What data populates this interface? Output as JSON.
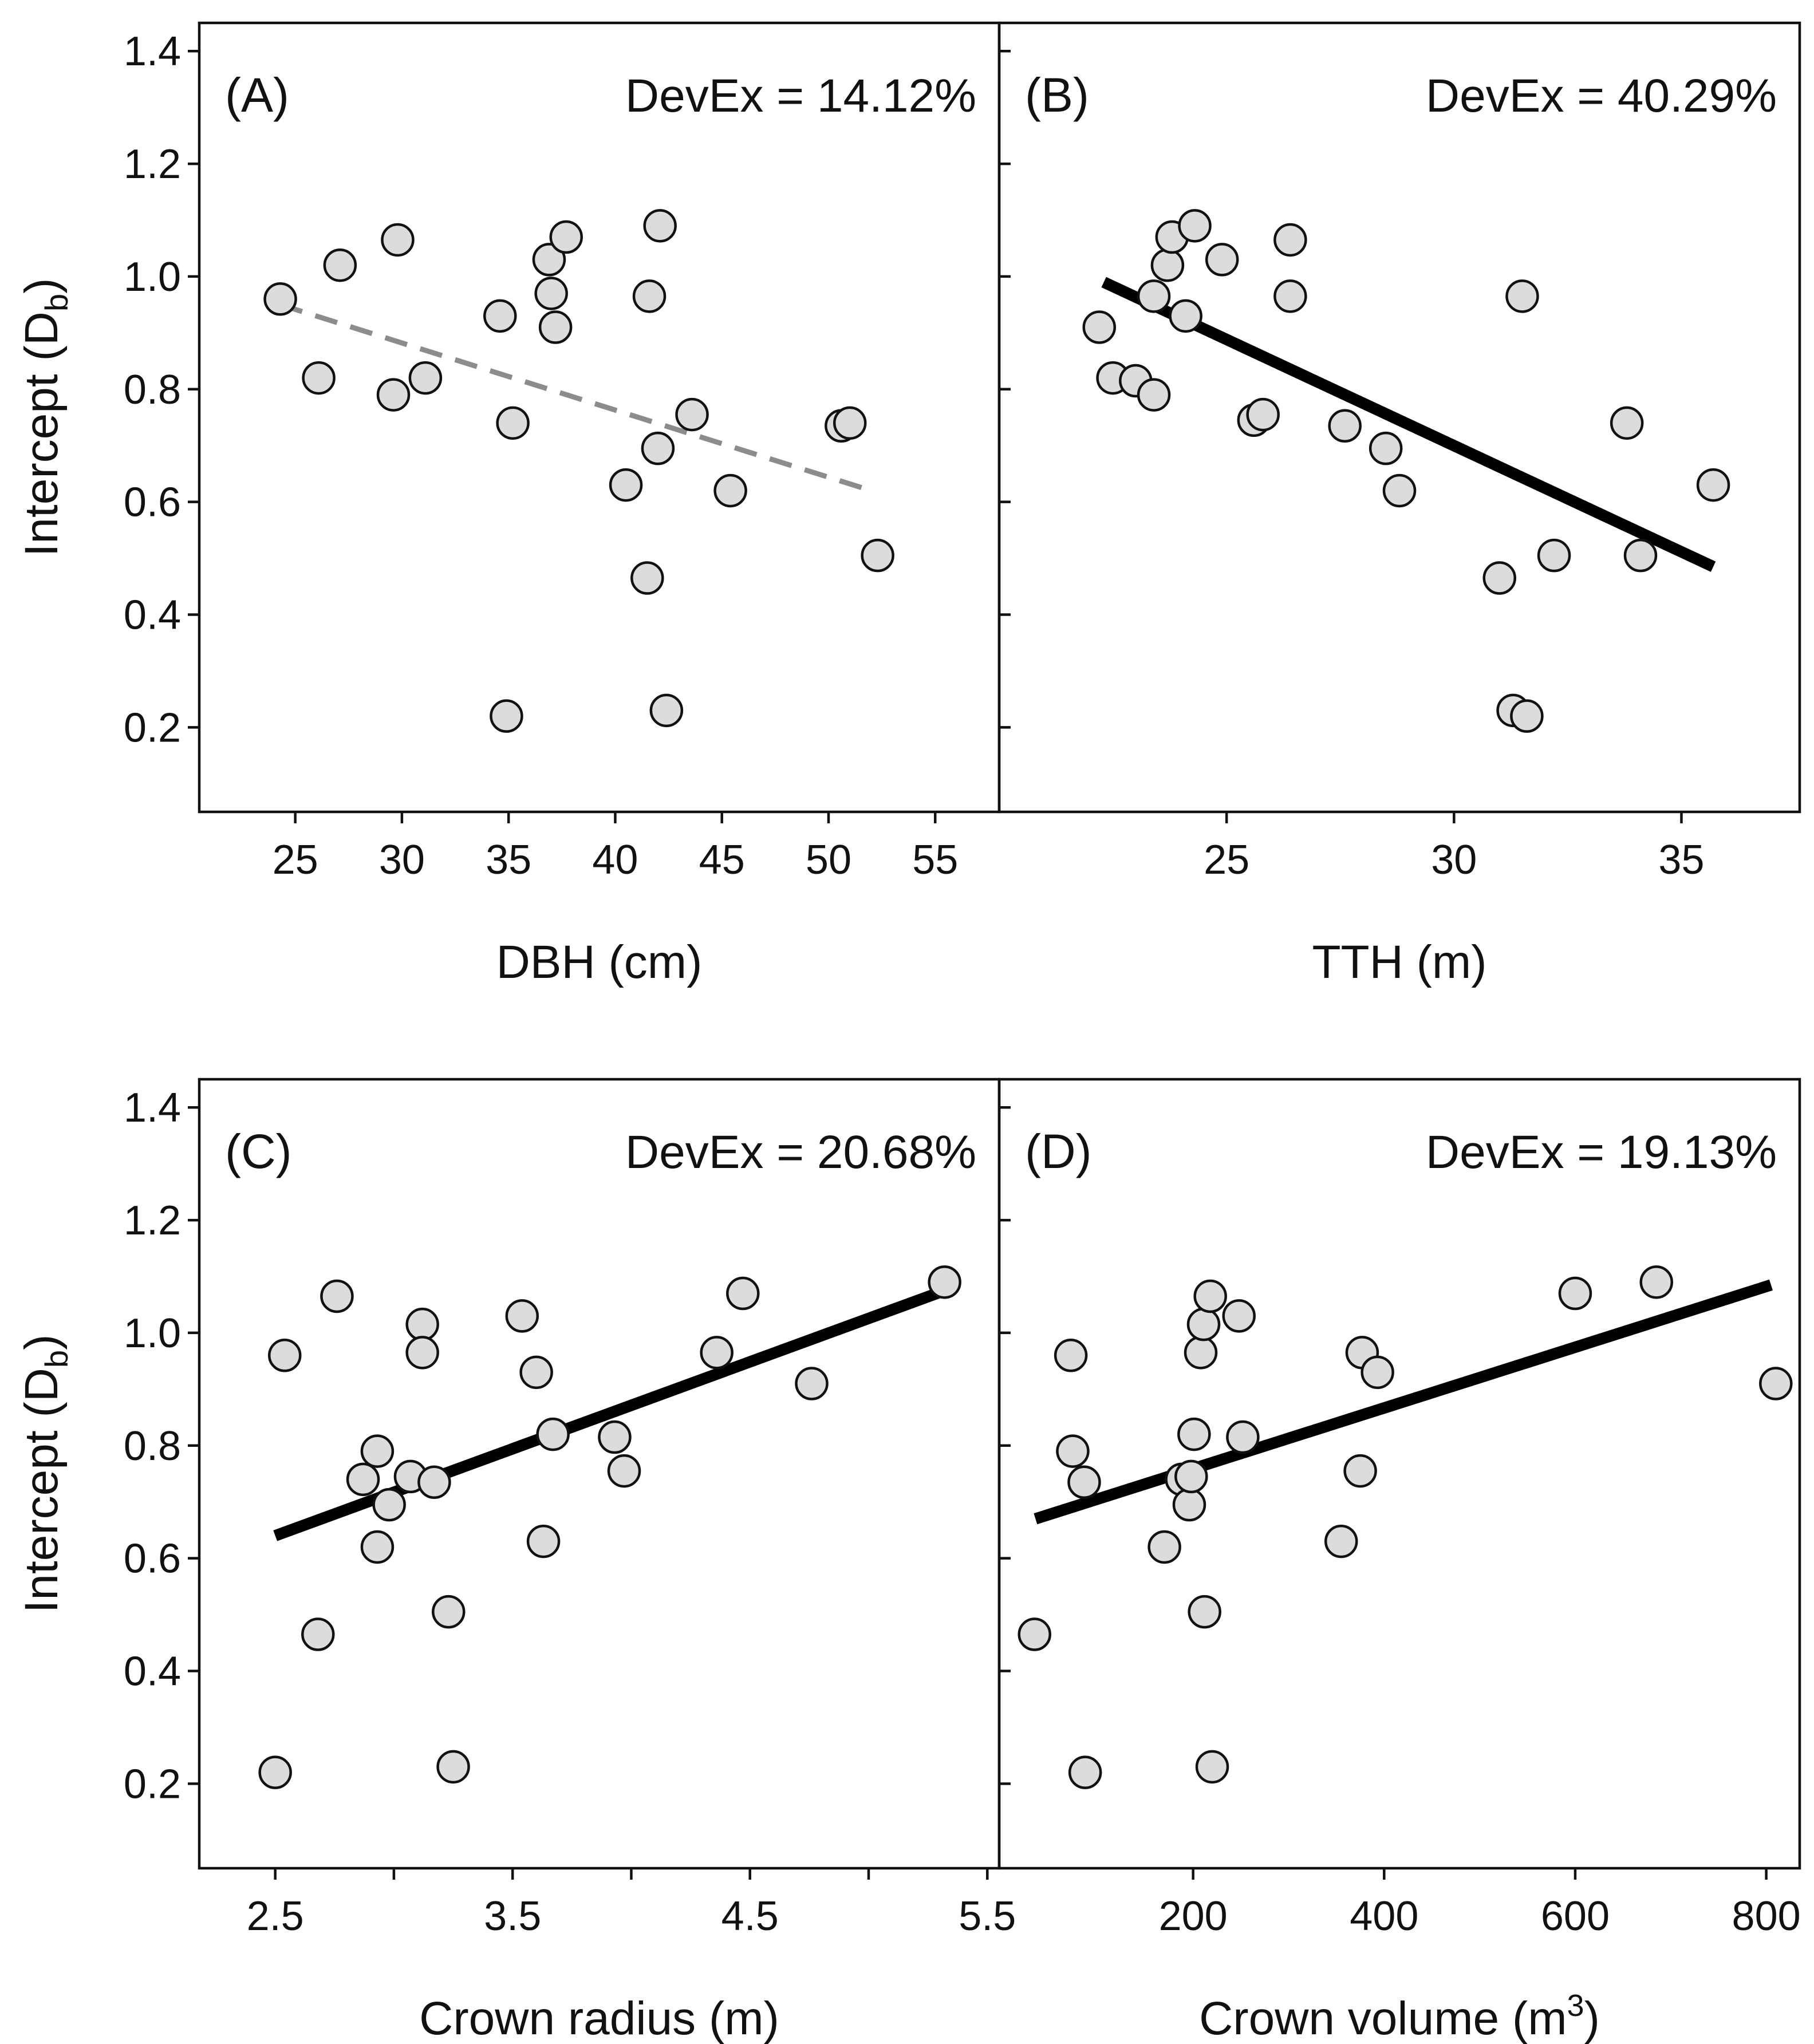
{
  "colors": {
    "point_fill": "#dcdcdc",
    "point_stroke": "#111111",
    "solid_fit": "#000000",
    "dashed_fit": "#8c8c8c",
    "background": "#ffffff"
  },
  "y_axis": {
    "label_main": "Intercept (D",
    "label_sub": "b",
    "label_end": ")",
    "ticks": [
      0.2,
      0.4,
      0.6,
      0.8,
      1.0,
      1.2,
      1.4
    ],
    "tick_labels": [
      "0.2",
      "0.4",
      "0.6",
      "0.8",
      "1.0",
      "1.2",
      "1.4"
    ],
    "ylim": [
      0.05,
      1.45
    ]
  },
  "chart_data": [
    {
      "type": "scatter",
      "panel": "(A)",
      "devex": "DevEx = 14.12%",
      "xlabel": "DBH (cm)",
      "ylabel": "Intercept (Db)",
      "xlim": [
        20.5,
        58
      ],
      "ylim": [
        0.05,
        1.45
      ],
      "x_ticks": [
        25,
        30,
        35,
        40,
        45,
        50,
        55
      ],
      "x_tick_labels": [
        "25",
        "30",
        "35",
        "40",
        "45",
        "50",
        "55"
      ],
      "x": [
        24.3,
        26.1,
        27.1,
        29.6,
        29.8,
        31.1,
        34.6,
        34.9,
        35.2,
        36.9,
        37.0,
        37.2,
        37.7,
        40.5,
        41.5,
        41.6,
        42.0,
        42.1,
        42.4,
        43.6,
        45.4,
        50.6,
        51.0,
        52.3
      ],
      "y": [
        0.96,
        0.82,
        1.02,
        0.79,
        1.065,
        0.82,
        0.93,
        0.22,
        0.74,
        1.03,
        0.97,
        0.91,
        1.07,
        0.63,
        0.465,
        0.965,
        0.695,
        1.09,
        0.23,
        0.755,
        0.62,
        0.735,
        0.74,
        0.505
      ],
      "fit": {
        "style": "dashed",
        "x": [
          24.3,
          52.0
        ],
        "y": [
          0.95,
          0.62
        ]
      }
    },
    {
      "type": "scatter",
      "panel": "(B)",
      "devex": "DevEx = 40.29%",
      "xlabel": "TTH (m)",
      "ylabel": "",
      "xlim": [
        20.0,
        37.6
      ],
      "ylim": [
        0.05,
        1.45
      ],
      "x_ticks": [
        25,
        30,
        35
      ],
      "x_tick_labels": [
        "25",
        "30",
        "35"
      ],
      "x": [
        22.2,
        22.5,
        23.0,
        23.4,
        23.4,
        23.7,
        23.8,
        24.1,
        24.3,
        24.9,
        25.6,
        25.8,
        26.4,
        26.4,
        27.6,
        28.5,
        28.8,
        31.0,
        31.3,
        31.5,
        31.6,
        32.2,
        33.8,
        34.1,
        35.7
      ],
      "y": [
        0.91,
        0.82,
        0.815,
        0.965,
        0.79,
        1.02,
        1.07,
        0.93,
        1.09,
        1.03,
        0.745,
        0.755,
        1.065,
        0.965,
        0.735,
        0.695,
        0.62,
        0.465,
        0.23,
        0.965,
        0.22,
        0.505,
        0.74,
        0.505,
        0.63
      ],
      "fit": {
        "style": "solid",
        "x": [
          22.3,
          35.7
        ],
        "y": [
          0.99,
          0.485
        ]
      }
    },
    {
      "type": "scatter",
      "panel": "(C)",
      "devex": "DevEx = 20.68%",
      "xlabel": "Crown radius (m)",
      "ylabel": "Intercept (Db)",
      "xlim": [
        2.18,
        5.55
      ],
      "ylim": [
        0.05,
        1.45
      ],
      "x_ticks": [
        2.5,
        3.0,
        3.5,
        4.0,
        4.5,
        5.0,
        5.5
      ],
      "x_tick_labels": [
        "2.5",
        "",
        "3.5",
        "",
        "4.5",
        "",
        "5.5"
      ],
      "x": [
        2.5,
        2.54,
        2.68,
        2.76,
        2.87,
        2.93,
        2.93,
        2.98,
        3.07,
        3.12,
        3.12,
        3.17,
        3.23,
        3.25,
        3.54,
        3.6,
        3.63,
        3.67,
        3.93,
        3.97,
        4.36,
        4.47,
        4.76,
        5.32
      ],
      "y": [
        0.22,
        0.96,
        0.465,
        1.065,
        0.74,
        0.79,
        0.62,
        0.695,
        0.745,
        1.015,
        0.965,
        0.735,
        0.505,
        0.23,
        1.03,
        0.93,
        0.63,
        0.82,
        0.815,
        0.755,
        0.965,
        1.07,
        0.91,
        1.09
      ],
      "fit": {
        "style": "solid",
        "x": [
          2.5,
          5.32
        ],
        "y": [
          0.64,
          1.075
        ]
      }
    },
    {
      "type": "scatter",
      "panel": "(D)",
      "devex": "DevEx = 19.13%",
      "xlabel": "Crown volume (m",
      "xlabel_sup": "3",
      "xlabel_end": ")",
      "ylabel": "",
      "xlim": [
        -3,
        835
      ],
      "ylim": [
        0.05,
        1.45
      ],
      "x_ticks": [
        200,
        400,
        600,
        800
      ],
      "x_tick_labels": [
        "200",
        "400",
        "600",
        "800"
      ],
      "x": [
        34,
        72,
        74,
        86,
        87,
        170,
        188,
        196,
        198,
        201,
        208,
        211,
        212,
        218,
        220,
        248,
        252,
        355,
        375,
        377,
        393,
        600,
        685,
        810
      ],
      "y": [
        0.465,
        0.96,
        0.79,
        0.735,
        0.22,
        0.62,
        0.74,
        0.695,
        0.745,
        0.82,
        0.965,
        1.015,
        0.505,
        1.065,
        0.23,
        1.03,
        0.815,
        0.63,
        0.755,
        0.965,
        0.93,
        1.07,
        1.09,
        0.91
      ],
      "fit": {
        "style": "solid",
        "x": [
          35,
          805
        ],
        "y": [
          0.67,
          1.085
        ]
      }
    }
  ]
}
